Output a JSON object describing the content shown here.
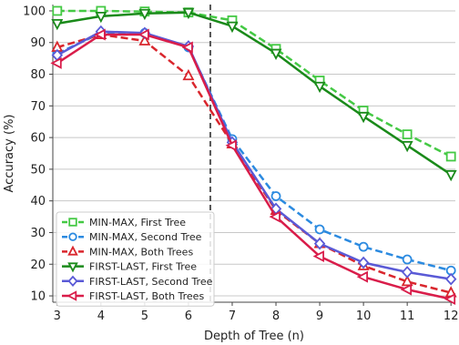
{
  "chart_data": {
    "type": "line",
    "xlabel": "Depth of Tree (n)",
    "ylabel": "Accuracy (%)",
    "x": [
      3,
      4,
      5,
      6,
      7,
      8,
      9,
      10,
      11,
      12
    ],
    "xlim": [
      2.9,
      12.1
    ],
    "ylim": [
      8,
      102
    ],
    "yticks": [
      10,
      20,
      30,
      40,
      50,
      60,
      70,
      80,
      90,
      100
    ],
    "grid": "horizontal",
    "vertical_reference_line": 6.5,
    "legend_position": "lower-left",
    "series": [
      {
        "name": "MIN-MAX, First Tree",
        "color": "#44c944",
        "line": "dashed",
        "marker": "square",
        "values": [
          100,
          100,
          99.8,
          99.5,
          97,
          88,
          78,
          68.5,
          61,
          54
        ]
      },
      {
        "name": "MIN-MAX, Second Tree",
        "color": "#2b8ae0",
        "line": "dashed",
        "marker": "circle",
        "values": [
          86.5,
          93,
          93,
          88.5,
          59.5,
          41.5,
          31,
          25.5,
          21.5,
          18
        ]
      },
      {
        "name": "MIN-MAX, Both Trees",
        "color": "#d9262d",
        "line": "dashed",
        "marker": "triangle-up",
        "values": [
          88.5,
          92.5,
          90.5,
          79.5,
          58,
          37,
          26.5,
          19.5,
          14.5,
          11
        ]
      },
      {
        "name": "FIRST-LAST, First Tree",
        "color": "#1a8a1a",
        "line": "solid",
        "marker": "triangle-down",
        "values": [
          96,
          98.3,
          99.2,
          99.5,
          95.2,
          86.6,
          76.2,
          66.7,
          57.5,
          48.3
        ]
      },
      {
        "name": "FIRST-LAST, Second Tree",
        "color": "#5a5ad6",
        "line": "solid",
        "marker": "diamond",
        "values": [
          86,
          93.5,
          93,
          88.8,
          58.5,
          37.5,
          26.5,
          20.5,
          17.5,
          15.3
        ]
      },
      {
        "name": "FIRST-LAST, Both Trees",
        "color": "#d91d4a",
        "line": "solid",
        "marker": "triangle-left",
        "values": [
          83.5,
          92.5,
          92.5,
          88.5,
          57.5,
          35,
          22.5,
          16,
          12,
          9
        ]
      }
    ]
  }
}
